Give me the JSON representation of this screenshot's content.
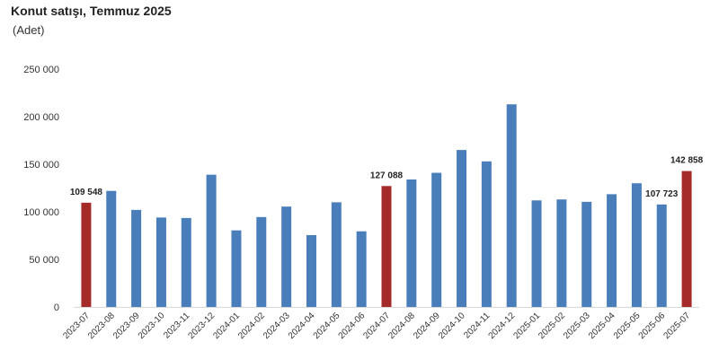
{
  "chart_data": {
    "type": "bar",
    "title": "Konut satışı, Temmuz 2025",
    "subtitle": "(Adet)",
    "xlabel": "",
    "ylabel": "",
    "ylim": [
      0,
      250000
    ],
    "yticks": [
      0,
      50000,
      100000,
      150000,
      200000,
      250000
    ],
    "ytick_labels": [
      "0",
      "50 000",
      "100 000",
      "150 000",
      "200 000",
      "250 000"
    ],
    "grid": false,
    "legend": "none",
    "categories": [
      "2023-07",
      "2023-08",
      "2023-09",
      "2023-10",
      "2023-11",
      "2023-12",
      "2024-01",
      "2024-02",
      "2024-03",
      "2024-04",
      "2024-05",
      "2024-06",
      "2024-07",
      "2024-08",
      "2024-09",
      "2024-10",
      "2024-11",
      "2024-12",
      "2025-01",
      "2025-02",
      "2025-03",
      "2025-04",
      "2025-05",
      "2025-06",
      "2025-07"
    ],
    "values": [
      109548,
      122000,
      102000,
      94000,
      93500,
      139000,
      80500,
      94500,
      105500,
      75500,
      110000,
      79500,
      127088,
      134000,
      141000,
      165000,
      153000,
      213000,
      112000,
      113000,
      110500,
      118500,
      130000,
      107723,
      142858
    ],
    "highlight_months": [
      "2023-07",
      "2024-07",
      "2025-07"
    ],
    "data_labels": [
      {
        "category": "2023-07",
        "text": "109 548"
      },
      {
        "category": "2024-07",
        "text": "127 088"
      },
      {
        "category": "2025-06",
        "text": "107 723"
      },
      {
        "category": "2025-07",
        "text": "142 858"
      }
    ],
    "colors": {
      "regular": "#4a7ebb",
      "highlight": "#a52a2a"
    }
  }
}
